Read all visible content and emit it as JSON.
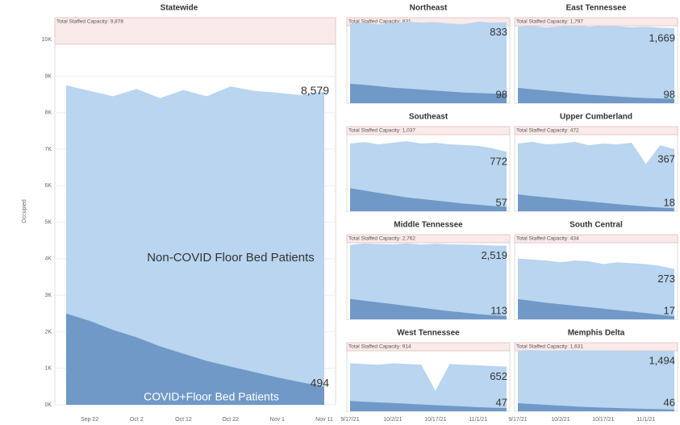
{
  "chart_data": [
    {
      "type": "area",
      "title": "Statewide",
      "ylabel": "Occupied",
      "capacity": 9878,
      "capacity_label": "Total Staffed Capacity: 9,878",
      "ylim": [
        0,
        10600
      ],
      "yticks": [
        {
          "value": 0,
          "label": "0K"
        },
        {
          "value": 1000,
          "label": "1K"
        },
        {
          "value": 2000,
          "label": "2K"
        },
        {
          "value": 3000,
          "label": "3K"
        },
        {
          "value": 4000,
          "label": "4K"
        },
        {
          "value": 5000,
          "label": "5K"
        },
        {
          "value": 6000,
          "label": "6K"
        },
        {
          "value": 7000,
          "label": "7K"
        },
        {
          "value": 8000,
          "label": "8K"
        },
        {
          "value": 9000,
          "label": "9K"
        },
        {
          "value": 10000,
          "label": "10K"
        }
      ],
      "x": [
        "Sep 17",
        "Sep 22",
        "Sep 27",
        "Oct 2",
        "Oct 7",
        "Oct 12",
        "Oct 17",
        "Oct 22",
        "Oct 27",
        "Nov 1",
        "Nov 6",
        "Nov 11"
      ],
      "xticks": [
        "Sep 22",
        "Oct 2",
        "Oct 12",
        "Oct 22",
        "Nov 1",
        "Nov 11"
      ],
      "series": [
        {
          "name": "Non-COVID Floor Bed Patients",
          "color": "#b9d5ef",
          "values": [
            8750,
            8600,
            8450,
            8650,
            8400,
            8620,
            8450,
            8720,
            8600,
            8550,
            8480,
            8579
          ],
          "value_labels": [
            null,
            null,
            null,
            null,
            null,
            null,
            null,
            null,
            null,
            null,
            null,
            "8,579"
          ]
        },
        {
          "name": "COVID+Floor Bed Patients",
          "color": "#7099c8",
          "values": [
            2500,
            2300,
            2050,
            1850,
            1600,
            1400,
            1200,
            1050,
            900,
            750,
            620,
            494
          ]
        }
      ]
    },
    {
      "type": "area",
      "title": "Northeast",
      "capacity": 831,
      "capacity_label": "Total Staffed Capacity: 831",
      "ylim": [
        0,
        880
      ],
      "x": [
        "9/17/21",
        "9/22/21",
        "9/27/21",
        "10/2/21",
        "10/7/21",
        "10/12/21",
        "10/17/21",
        "10/22/21",
        "10/27/21",
        "11/1/21",
        "11/6/21",
        "11/11/21"
      ],
      "series": [
        {
          "color": "#b9d5ef",
          "values": [
            820,
            830,
            810,
            825,
            840,
            830,
            835,
            820,
            815,
            840,
            830,
            833
          ]
        },
        {
          "color": "#7099c8",
          "values": [
            200,
            190,
            175,
            160,
            150,
            140,
            130,
            120,
            110,
            105,
            100,
            98
          ]
        }
      ]
    },
    {
      "type": "area",
      "title": "East Tennessee",
      "capacity": 1797,
      "capacity_label": "Total Staffed Capacity: 1,797",
      "ylim": [
        0,
        1900
      ],
      "x": [
        "9/17/21",
        "9/22/21",
        "9/27/21",
        "10/2/21",
        "10/7/21",
        "10/12/21",
        "10/17/21",
        "10/22/21",
        "10/27/21",
        "11/1/21",
        "11/6/21",
        "11/11/21"
      ],
      "series": [
        {
          "color": "#b9d5ef",
          "values": [
            1700,
            1720,
            1690,
            1710,
            1730,
            1700,
            1720,
            1710,
            1690,
            1700,
            1680,
            1669
          ],
          "value_labels": [
            null,
            null,
            null,
            null,
            null,
            null,
            null,
            null,
            null,
            null,
            null,
            "1,669"
          ]
        },
        {
          "color": "#7099c8",
          "values": [
            340,
            310,
            280,
            250,
            220,
            190,
            170,
            150,
            130,
            115,
            105,
            98
          ]
        }
      ]
    },
    {
      "type": "area",
      "title": "Southeast",
      "capacity": 1037,
      "capacity_label": "Total Staffed Capacity: 1,037",
      "ylim": [
        0,
        1100
      ],
      "x": [
        "9/17/21",
        "9/22/21",
        "9/27/21",
        "10/2/21",
        "10/7/21",
        "10/12/21",
        "10/17/21",
        "10/22/21",
        "10/27/21",
        "11/1/21",
        "11/6/21",
        "11/11/21"
      ],
      "series": [
        {
          "color": "#b9d5ef",
          "values": [
            880,
            900,
            870,
            890,
            910,
            880,
            890,
            870,
            860,
            850,
            820,
            772
          ]
        },
        {
          "color": "#7099c8",
          "values": [
            300,
            270,
            240,
            210,
            180,
            160,
            140,
            120,
            100,
            85,
            70,
            57
          ]
        }
      ]
    },
    {
      "type": "area",
      "title": "Upper Cumberland",
      "capacity": 472,
      "capacity_label": "Total Staffed Capacity: 472",
      "ylim": [
        0,
        500
      ],
      "x": [
        "9/17/21",
        "9/22/21",
        "9/27/21",
        "10/2/21",
        "10/7/21",
        "10/12/21",
        "10/17/21",
        "10/22/21",
        "10/27/21",
        "11/1/21",
        "11/6/21",
        "11/11/21"
      ],
      "series": [
        {
          "color": "#b9d5ef",
          "values": [
            400,
            410,
            395,
            400,
            410,
            390,
            400,
            395,
            405,
            280,
            390,
            367
          ]
        },
        {
          "color": "#7099c8",
          "values": [
            100,
            90,
            82,
            74,
            66,
            58,
            50,
            42,
            35,
            28,
            22,
            18
          ]
        }
      ]
    },
    {
      "type": "area",
      "title": "Middle Tennessee",
      "capacity": 2762,
      "capacity_label": "Total Staffed Capacity: 2,762",
      "ylim": [
        0,
        2900
      ],
      "x": [
        "9/17/21",
        "9/22/21",
        "9/27/21",
        "10/2/21",
        "10/7/21",
        "10/12/21",
        "10/17/21",
        "10/22/21",
        "10/27/21",
        "11/1/21",
        "11/6/21",
        "11/11/21"
      ],
      "series": [
        {
          "color": "#b9d5ef",
          "values": [
            2550,
            2600,
            2580,
            2570,
            2600,
            2560,
            2590,
            2570,
            2560,
            2550,
            2530,
            2519
          ],
          "value_labels": [
            null,
            null,
            null,
            null,
            null,
            null,
            null,
            null,
            null,
            null,
            null,
            "2,519"
          ]
        },
        {
          "color": "#7099c8",
          "values": [
            700,
            640,
            580,
            520,
            460,
            400,
            340,
            280,
            230,
            180,
            140,
            113
          ]
        }
      ]
    },
    {
      "type": "area",
      "title": "South Central",
      "capacity": 434,
      "capacity_label": "Total Staffed Capacity: 434",
      "ylim": [
        0,
        460
      ],
      "x": [
        "9/17/21",
        "9/22/21",
        "9/27/21",
        "10/2/21",
        "10/7/21",
        "10/12/21",
        "10/17/21",
        "10/22/21",
        "10/27/21",
        "11/1/21",
        "11/6/21",
        "11/11/21"
      ],
      "series": [
        {
          "color": "#b9d5ef",
          "values": [
            330,
            325,
            320,
            310,
            320,
            315,
            300,
            310,
            305,
            300,
            290,
            273
          ]
        },
        {
          "color": "#7099c8",
          "values": [
            110,
            100,
            90,
            82,
            74,
            66,
            58,
            50,
            42,
            34,
            25,
            17
          ]
        }
      ]
    },
    {
      "type": "area",
      "title": "West Tennessee",
      "capacity": 914,
      "capacity_label": "Total Staffed Capacity: 914",
      "ylim": [
        0,
        1000
      ],
      "x": [
        "9/17/21",
        "9/22/21",
        "9/27/21",
        "10/2/21",
        "10/7/21",
        "10/12/21",
        "10/17/21",
        "10/22/21",
        "10/27/21",
        "11/1/21",
        "11/6/21",
        "11/11/21"
      ],
      "xticks": [
        "9/17/21",
        "10/2/21",
        "10/17/21",
        "11/1/21"
      ],
      "series": [
        {
          "color": "#b9d5ef",
          "values": [
            700,
            690,
            680,
            700,
            690,
            680,
            300,
            690,
            680,
            670,
            660,
            652
          ]
        },
        {
          "color": "#7099c8",
          "values": [
            150,
            140,
            130,
            120,
            110,
            100,
            90,
            80,
            70,
            60,
            52,
            47
          ]
        }
      ]
    },
    {
      "type": "area",
      "title": "Memphis Delta",
      "capacity": 1631,
      "capacity_label": "Total Staffed Capacity: 1,631",
      "ylim": [
        0,
        1700
      ],
      "x": [
        "9/17/21",
        "9/22/21",
        "9/27/21",
        "10/2/21",
        "10/7/21",
        "10/12/21",
        "10/17/21",
        "10/22/21",
        "10/27/21",
        "11/1/21",
        "11/6/21",
        "11/11/21"
      ],
      "xticks": [
        "9/17/21",
        "10/2/21",
        "10/17/21",
        "11/1/21"
      ],
      "series": [
        {
          "color": "#b9d5ef",
          "values": [
            1500,
            1520,
            1500,
            1510,
            1520,
            1500,
            1510,
            1500,
            1490,
            1500,
            1490,
            1494
          ],
          "value_labels": [
            null,
            null,
            null,
            null,
            null,
            null,
            null,
            null,
            null,
            null,
            null,
            "1,494"
          ]
        },
        {
          "color": "#7099c8",
          "values": [
            200,
            180,
            160,
            140,
            120,
            105,
            90,
            80,
            70,
            60,
            52,
            46
          ]
        }
      ]
    }
  ]
}
